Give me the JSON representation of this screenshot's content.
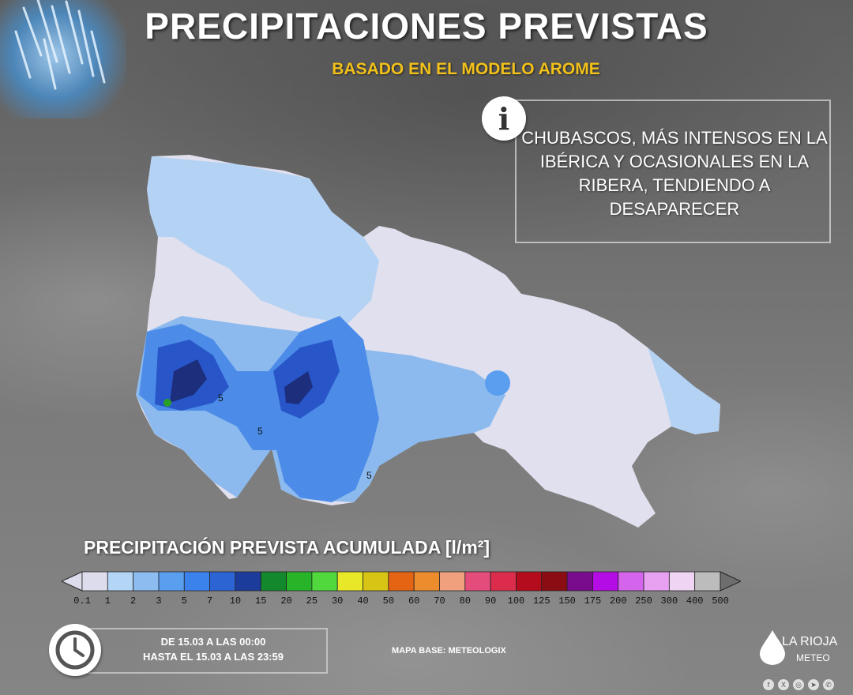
{
  "header": {
    "title": "PRECIPITACIONES PREVISTAS",
    "subtitle": "BASADO EN EL MODELO AROME"
  },
  "info": {
    "icon": "info-icon",
    "text": "CHUBASCOS, MÁS INTENSOS EN LA IBÉRICA Y OCASIONALES EN LA RIBERA, TENDIENDO A DESAPARECER"
  },
  "map": {
    "contour_labels": [
      "5",
      "5",
      "5"
    ]
  },
  "legend": {
    "title": "PRECIPITACIÓN PREVISTA ACUMULADA [l/m²]",
    "labels": [
      "0.1",
      "1",
      "2",
      "3",
      "5",
      "7",
      "10",
      "15",
      "20",
      "25",
      "30",
      "40",
      "50",
      "60",
      "70",
      "80",
      "90",
      "100",
      "125",
      "150",
      "175",
      "200",
      "250",
      "300",
      "400",
      "500"
    ],
    "colors": [
      "#dcdcec",
      "#b4d6f6",
      "#8cbcf0",
      "#5a9ef0",
      "#3c82ec",
      "#2c64d4",
      "#1c3c9c",
      "#14882c",
      "#28b428",
      "#50d83c",
      "#e8e828",
      "#d8c414",
      "#e46414",
      "#ec8c2c",
      "#f0a07c",
      "#e44c7c",
      "#dc2c4c",
      "#b40c1c",
      "#8c0c14",
      "#780c8c",
      "#b40ce4",
      "#d464ec",
      "#e8a0f0",
      "#f0d4f4",
      "#bcbcbc"
    ]
  },
  "time": {
    "line1": "DE 15.03 A LAS 00:00",
    "line2": "HASTA EL 15.03 A LAS 23:59"
  },
  "credit": "MAPA BASE: METEOLOGIX",
  "brand": {
    "name": "LA RIOJA",
    "sub": "METEO",
    "socials": [
      "facebook-icon",
      "x-icon",
      "instagram-icon",
      "telegram-icon",
      "whatsapp-icon"
    ]
  }
}
